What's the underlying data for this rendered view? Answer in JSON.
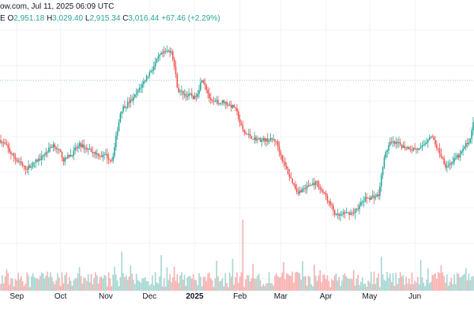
{
  "header": {
    "source_line": "ow.com, Jul 11, 2025 06:09 UTC",
    "ohlc": [
      {
        "key": "E ",
        "val": ""
      },
      {
        "key": "O",
        "val": "2,951.18"
      },
      {
        "key": " H",
        "val": "3,029.40"
      },
      {
        "key": " L",
        "val": "2,915.34"
      },
      {
        "key": " C",
        "val": "3,016.44"
      },
      {
        "key": " ",
        "val": "+67.46 (+2.29%)"
      }
    ]
  },
  "colors": {
    "up": "#26a69a",
    "down": "#ef5350",
    "up_volume": "#a5d6d2",
    "down_volume": "#f7b0ae",
    "grid": "#f0f3fa",
    "price_line": "#26a69a"
  },
  "chart_data": {
    "type": "candlestick",
    "x_tick_labels": [
      {
        "label": "Sep",
        "bold": false,
        "date": "2024-09-01"
      },
      {
        "label": "Oct",
        "bold": false,
        "date": "2024-10-01"
      },
      {
        "label": "Nov",
        "bold": false,
        "date": "2024-11-01"
      },
      {
        "label": "Dec",
        "bold": false,
        "date": "2024-12-01"
      },
      {
        "label": "2025",
        "bold": true,
        "date": "2025-01-01"
      },
      {
        "label": "Feb",
        "bold": false,
        "date": "2025-02-01"
      },
      {
        "label": "Mar",
        "bold": false,
        "date": "2025-03-01"
      },
      {
        "label": "Apr",
        "bold": false,
        "date": "2025-04-01"
      },
      {
        "label": "May",
        "bold": false,
        "date": "2025-05-01"
      },
      {
        "label": "Jun",
        "bold": false,
        "date": "2025-06-01"
      }
    ],
    "x_range": [
      "2024-08-21",
      "2025-07-11"
    ],
    "y_range": [
      1200,
      4500
    ],
    "last_price": 3016.44,
    "grid": true,
    "price_waypoints": [
      {
        "date": "2024-08-21",
        "price": 2700
      },
      {
        "date": "2024-08-27",
        "price": 2500
      },
      {
        "date": "2024-09-06",
        "price": 2250
      },
      {
        "date": "2024-09-16",
        "price": 2400
      },
      {
        "date": "2024-09-26",
        "price": 2650
      },
      {
        "date": "2024-10-03",
        "price": 2380
      },
      {
        "date": "2024-10-14",
        "price": 2620
      },
      {
        "date": "2024-10-25",
        "price": 2500
      },
      {
        "date": "2024-11-05",
        "price": 2400
      },
      {
        "date": "2024-11-11",
        "price": 3200
      },
      {
        "date": "2024-11-20",
        "price": 3350
      },
      {
        "date": "2024-11-29",
        "price": 3700
      },
      {
        "date": "2024-12-08",
        "price": 4000
      },
      {
        "date": "2024-12-16",
        "price": 4100
      },
      {
        "date": "2024-12-20",
        "price": 3450
      },
      {
        "date": "2025-01-01",
        "price": 3350
      },
      {
        "date": "2025-01-06",
        "price": 3700
      },
      {
        "date": "2025-01-12",
        "price": 3250
      },
      {
        "date": "2025-01-20",
        "price": 3300
      },
      {
        "date": "2025-01-28",
        "price": 3200
      },
      {
        "date": "2025-02-03",
        "price": 2800
      },
      {
        "date": "2025-02-14",
        "price": 2700
      },
      {
        "date": "2025-02-25",
        "price": 2700
      },
      {
        "date": "2025-03-04",
        "price": 2250
      },
      {
        "date": "2025-03-12",
        "price": 1900
      },
      {
        "date": "2025-03-25",
        "price": 2050
      },
      {
        "date": "2025-04-01",
        "price": 1800
      },
      {
        "date": "2025-04-08",
        "price": 1500
      },
      {
        "date": "2025-04-20",
        "price": 1600
      },
      {
        "date": "2025-04-28",
        "price": 1800
      },
      {
        "date": "2025-05-07",
        "price": 1850
      },
      {
        "date": "2025-05-10",
        "price": 2400
      },
      {
        "date": "2025-05-14",
        "price": 2650
      },
      {
        "date": "2025-05-25",
        "price": 2600
      },
      {
        "date": "2025-06-05",
        "price": 2550
      },
      {
        "date": "2025-06-11",
        "price": 2800
      },
      {
        "date": "2025-06-22",
        "price": 2300
      },
      {
        "date": "2025-07-01",
        "price": 2450
      },
      {
        "date": "2025-07-09",
        "price": 2750
      },
      {
        "date": "2025-07-11",
        "price": 3016.44
      }
    ],
    "volume_spikes": [
      {
        "date": "2025-02-03",
        "ratio": 1.0
      },
      {
        "date": "2024-11-12",
        "ratio": 0.55
      },
      {
        "date": "2024-12-09",
        "ratio": 0.5
      },
      {
        "date": "2025-03-03",
        "ratio": 0.4
      },
      {
        "date": "2025-05-09",
        "ratio": 0.48
      },
      {
        "date": "2025-01-27",
        "ratio": 0.45
      }
    ]
  }
}
